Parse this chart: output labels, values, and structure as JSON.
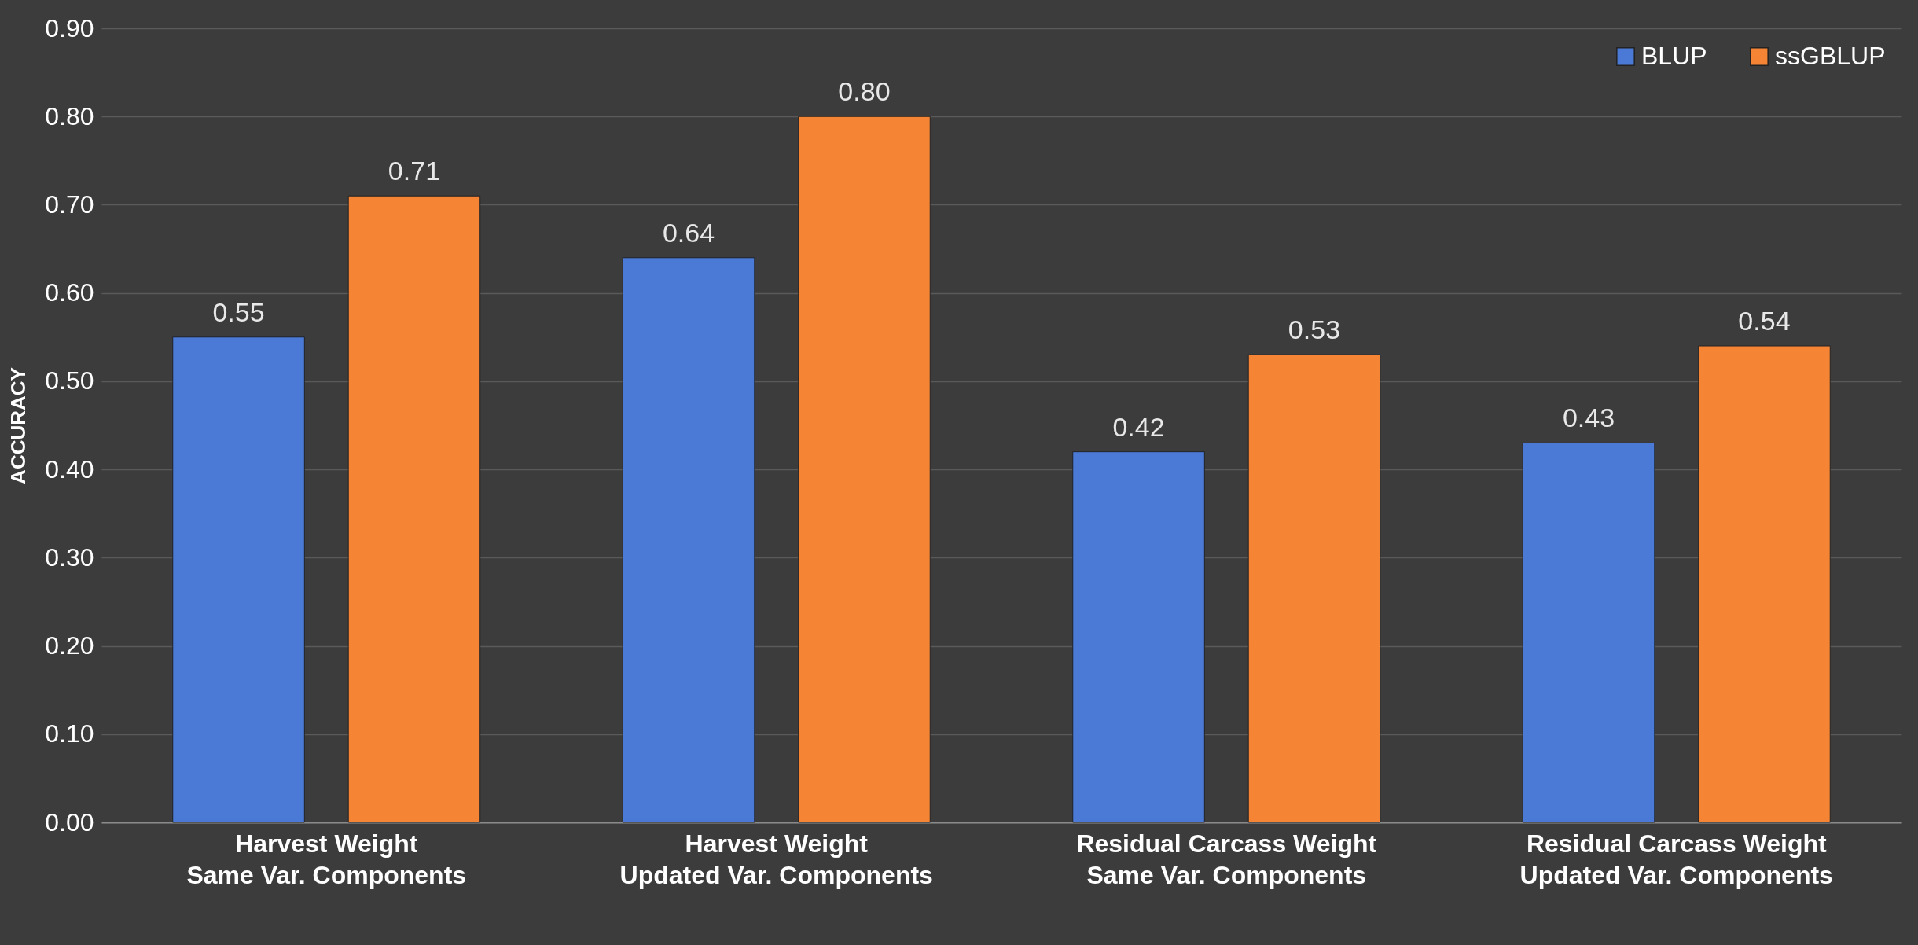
{
  "chart_data": {
    "type": "bar",
    "ylabel": "ACCURACY",
    "categories": [
      "Harvest Weight\nSame Var. Components",
      "Harvest Weight\nUpdated Var. Components",
      "Residual Carcass Weight\nSame Var. Components",
      "Residual Carcass Weight\nUpdated Var. Components"
    ],
    "series": [
      {
        "name": "BLUP",
        "color": "#4a7ad6",
        "values": [
          0.55,
          0.64,
          0.42,
          0.43
        ],
        "value_labels": [
          "0.55",
          "0.64",
          "0.42",
          "0.43"
        ]
      },
      {
        "name": "ssGBLUP",
        "color": "#f58535",
        "values": [
          0.71,
          0.8,
          0.53,
          0.54
        ],
        "value_labels": [
          "0.71",
          "0.80",
          "0.53",
          "0.54"
        ]
      }
    ],
    "ylim": [
      0,
      0.9
    ],
    "yticks": [
      {
        "value": 0,
        "label": "0.00"
      },
      {
        "value": 0.1,
        "label": "0.10"
      },
      {
        "value": 0.2,
        "label": "0.20"
      },
      {
        "value": 0.3,
        "label": "0.30"
      },
      {
        "value": 0.4,
        "label": "0.40"
      },
      {
        "value": 0.5,
        "label": "0.50"
      },
      {
        "value": 0.6,
        "label": "0.60"
      },
      {
        "value": 0.7,
        "label": "0.70"
      },
      {
        "value": 0.8,
        "label": "0.80"
      },
      {
        "value": 0.9,
        "label": "0.90"
      }
    ],
    "grid": "y",
    "legend": "top right"
  }
}
